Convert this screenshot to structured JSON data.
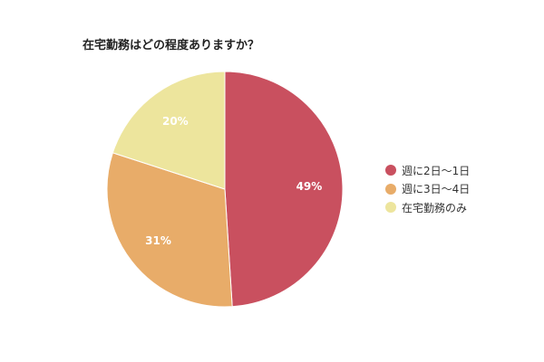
{
  "chart_data": {
    "type": "pie",
    "title": "在宅勤務はどの程度ありますか？",
    "categories": [
      "週に2日〜1日",
      "週に3日〜4日",
      "在宅勤務のみ"
    ],
    "values": [
      49,
      31,
      20
    ],
    "data_labels": [
      "49%",
      "31%",
      "20%"
    ],
    "colors": [
      "#c9505f",
      "#e8ac69",
      "#ede59d"
    ],
    "legend_position": "right"
  }
}
